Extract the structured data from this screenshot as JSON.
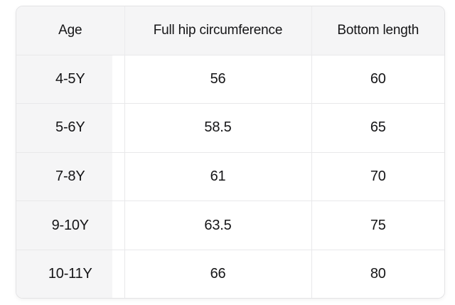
{
  "table": {
    "columns": [
      {
        "key": "age",
        "label": "Age"
      },
      {
        "key": "full_hip_circumference",
        "label": "Full hip circumference"
      },
      {
        "key": "bottom_length",
        "label": "Bottom length"
      }
    ],
    "rows": [
      {
        "age": "4-5Y",
        "full_hip_circumference": "56",
        "bottom_length": "60"
      },
      {
        "age": "5-6Y",
        "full_hip_circumference": "58.5",
        "bottom_length": "65"
      },
      {
        "age": "7-8Y",
        "full_hip_circumference": "61",
        "bottom_length": "70"
      },
      {
        "age": "9-10Y",
        "full_hip_circumference": "63.5",
        "bottom_length": "75"
      },
      {
        "age": "10-11Y",
        "full_hip_circumference": "66",
        "bottom_length": "80"
      }
    ],
    "colors": {
      "header_bg": "#f5f5f6",
      "sticky_column_bg": "#f5f5f6",
      "body_bg": "#ffffff",
      "border": "#e8e8ea",
      "card_border": "#e3e3e5",
      "text": "#151517"
    }
  },
  "chart_data": {
    "type": "table",
    "title": "",
    "columns": [
      "Age",
      "Full hip circumference",
      "Bottom length"
    ],
    "rows": [
      [
        "4-5Y",
        "56",
        "60"
      ],
      [
        "5-6Y",
        "58.5",
        "65"
      ],
      [
        "7-8Y",
        "61",
        "70"
      ],
      [
        "9-10Y",
        "63.5",
        "75"
      ],
      [
        "10-11Y",
        "66",
        "80"
      ]
    ]
  }
}
